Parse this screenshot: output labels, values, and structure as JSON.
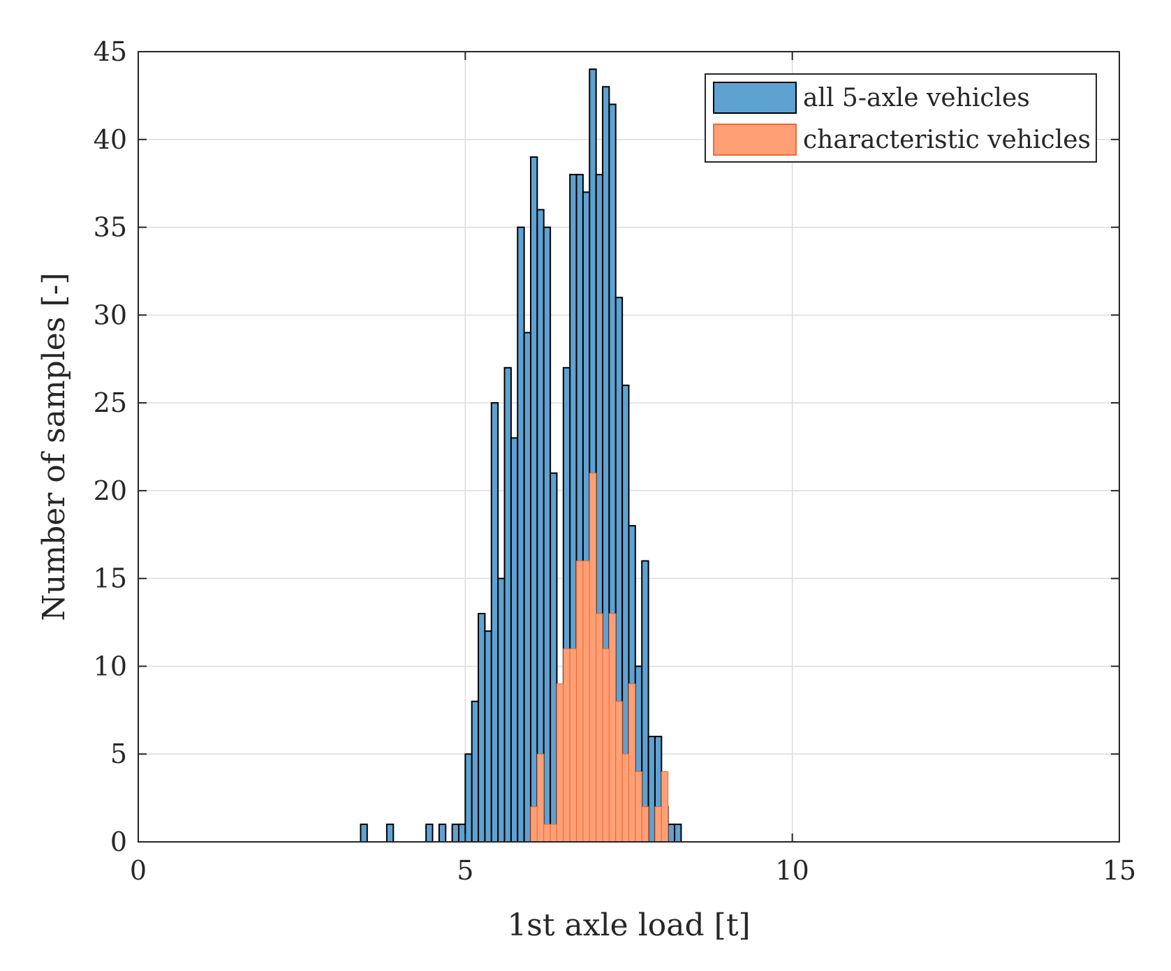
{
  "chart_data": {
    "type": "bar",
    "title": "",
    "xlabel": "1st axle load [t]",
    "ylabel": "Number of samples [-]",
    "xlim": [
      0,
      15
    ],
    "ylim": [
      0,
      45
    ],
    "xticks": [
      "0",
      "5",
      "10",
      "15"
    ],
    "yticks": [
      "0",
      "5",
      "10",
      "15",
      "20",
      "25",
      "30",
      "35",
      "40",
      "45"
    ],
    "grid": true,
    "legend_position": "top-right",
    "bin_width": 0.1,
    "series": [
      {
        "name": "all 5-axle vehicles",
        "color": "#5fa2d2",
        "edge_color": "#000000",
        "x": [
          3.4,
          3.8,
          4.4,
          4.6,
          4.8,
          4.9,
          5.0,
          5.1,
          5.2,
          5.3,
          5.4,
          5.5,
          5.6,
          5.7,
          5.8,
          5.9,
          6.0,
          6.1,
          6.2,
          6.3,
          6.4,
          6.5,
          6.6,
          6.7,
          6.8,
          6.9,
          7.0,
          7.1,
          7.2,
          7.3,
          7.4,
          7.5,
          7.6,
          7.7,
          7.8,
          7.9,
          8.0,
          8.1,
          8.2
        ],
        "values": [
          1,
          1,
          1,
          1,
          1,
          1,
          5,
          8,
          13,
          12,
          25,
          15,
          27,
          23,
          35,
          29,
          39,
          36,
          35,
          21,
          1,
          27,
          38,
          38,
          37,
          44,
          38,
          43,
          42,
          31,
          26,
          18,
          10,
          16,
          6,
          6,
          2,
          1,
          1
        ]
      },
      {
        "name": "characteristic vehicles",
        "color": "#ff9f74",
        "edge_color": "#e86a3a",
        "x": [
          6.0,
          6.1,
          6.2,
          6.3,
          6.4,
          6.5,
          6.6,
          6.7,
          6.8,
          6.9,
          7.0,
          7.1,
          7.2,
          7.3,
          7.4,
          7.5,
          7.6,
          7.7,
          7.8,
          7.9,
          8.0,
          8.1
        ],
        "values": [
          2,
          5,
          1,
          1,
          9,
          11,
          11,
          16,
          16,
          21,
          13,
          11,
          13,
          8,
          5,
          9,
          4,
          2,
          0,
          2,
          4,
          0
        ]
      }
    ]
  }
}
